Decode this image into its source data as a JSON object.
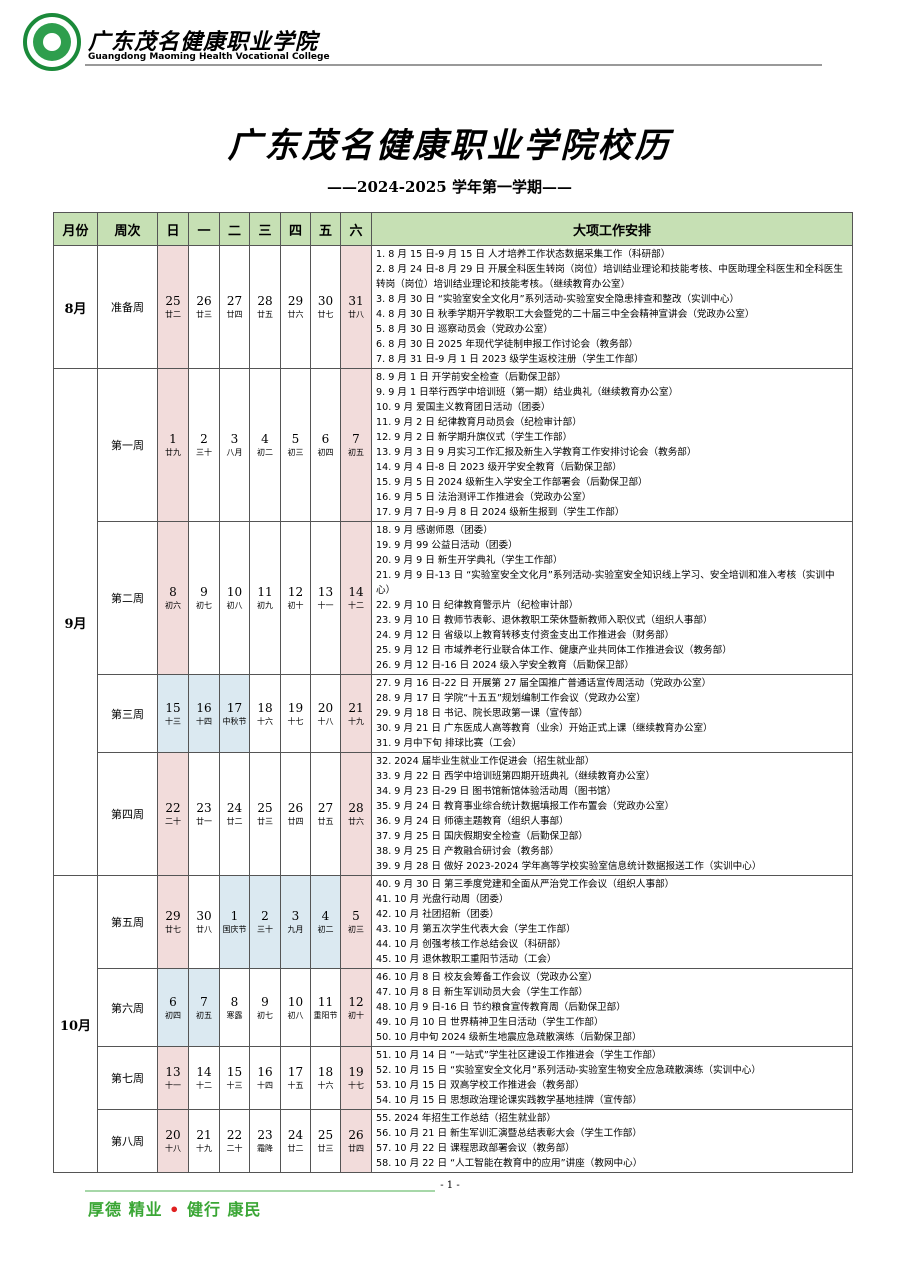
{
  "header": {
    "school_cn": "广东茂名健康职业学院",
    "school_en": "Guangdong Maoming Health Vocational College"
  },
  "title": "广东茂名健康职业学院校历",
  "subtitle": "——2024-2025 学年第一学期——",
  "table": {
    "headers": [
      "月份",
      "周次",
      "日",
      "一",
      "二",
      "三",
      "四",
      "五",
      "六",
      "大项工作安排"
    ],
    "months": [
      {
        "label": "8月",
        "weeks": [
          {
            "name": "准备周",
            "days": [
              {
                "d": 25,
                "lunar": "廿二"
              },
              {
                "d": 26,
                "lunar": "廿三"
              },
              {
                "d": 27,
                "lunar": "廿四"
              },
              {
                "d": 28,
                "lunar": "廿五"
              },
              {
                "d": 29,
                "lunar": "廿六"
              },
              {
                "d": 30,
                "lunar": "廿七"
              },
              {
                "d": 31,
                "lunar": "廿八"
              }
            ],
            "items": [
              "1. 8 月 15 日-9 月 15 日 人才培养工作状态数据采集工作（科研部）",
              "2. 8 月 24 日-8 月 29 日 开展全科医生转岗（岗位）培训结业理论和技能考核、中医助理全科医生和全科医生转岗（岗位）培训结业理论和技能考核。（继续教育办公室）",
              "3. 8 月 30 日 “实验室安全文化月”系列活动-实验室安全隐患排查和整改（实训中心）",
              "4. 8 月 30 日 秋季学期开学教职工大会暨党的二十届三中全会精神宣讲会（党政办公室）",
              "5. 8 月 30 日 巡察动员会（党政办公室）",
              "6. 8 月 30 日 2025 年现代学徒制申报工作讨论会（教务部）",
              "7. 8 月 31 日-9 月 1 日 2023 级学生返校注册（学生工作部）"
            ]
          }
        ]
      },
      {
        "label": "9月",
        "weeks": [
          {
            "name": "第一周",
            "days": [
              {
                "d": 1,
                "lunar": "廿九"
              },
              {
                "d": 2,
                "lunar": "三十"
              },
              {
                "d": 3,
                "lunar": "八月"
              },
              {
                "d": 4,
                "lunar": "初二"
              },
              {
                "d": 5,
                "lunar": "初三"
              },
              {
                "d": 6,
                "lunar": "初四"
              },
              {
                "d": 7,
                "lunar": "初五"
              }
            ],
            "items": [
              "8. 9 月 1 日 开学前安全检查（后勤保卫部）",
              "9. 9 月 1 日举行西学中培训班（第一期）结业典礼（继续教育办公室）",
              "10. 9 月 爱国主义教育团日活动（团委）",
              "11. 9 月 2 日 纪律教育月动员会（纪检审计部）",
              "12. 9 月 2 日 新学期升旗仪式（学生工作部）",
              "13. 9 月 3 日 9 月实习工作汇报及新生入学教育工作安排讨论会（教务部）",
              "14. 9 月 4 日-8 日 2023 级开学安全教育（后勤保卫部）",
              "15. 9 月 5 日 2024 级新生入学安全工作部署会（后勤保卫部）",
              "16. 9 月 5 日 法治测评工作推进会（党政办公室）",
              "17. 9 月 7 日-9 月 8 日 2024 级新生报到（学生工作部）"
            ]
          },
          {
            "name": "第二周",
            "days": [
              {
                "d": 8,
                "lunar": "初六"
              },
              {
                "d": 9,
                "lunar": "初七"
              },
              {
                "d": 10,
                "lunar": "初八"
              },
              {
                "d": 11,
                "lunar": "初九"
              },
              {
                "d": 12,
                "lunar": "初十"
              },
              {
                "d": 13,
                "lunar": "十一"
              },
              {
                "d": 14,
                "lunar": "十二"
              }
            ],
            "items": [
              "18. 9 月 感谢师恩（团委）",
              "19. 9 月 99 公益日活动（团委）",
              "20. 9 月 9 日 新生开学典礼（学生工作部）",
              "21. 9 月 9 日-13 日 “实验室安全文化月”系列活动-实验室安全知识线上学习、安全培训和准入考核（实训中心）",
              "22. 9 月 10 日 纪律教育警示片（纪检审计部）",
              "23. 9 月 10 日 教师节表彰、退休教职工荣休暨新教师入职仪式（组织人事部）",
              "24. 9 月 12 日 省级以上教育转移支付资金支出工作推进会（财务部）",
              "25. 9 月 12 日 市域养老行业联合体工作、健康产业共同体工作推进会议（教务部）",
              "26. 9 月 12 日-16 日 2024 级入学安全教育（后勤保卫部）"
            ]
          },
          {
            "name": "第三周",
            "days": [
              {
                "d": 15,
                "lunar": "十三",
                "holiday": true
              },
              {
                "d": 16,
                "lunar": "十四",
                "holiday": true
              },
              {
                "d": 17,
                "lunar": "中秋节",
                "holiday": true
              },
              {
                "d": 18,
                "lunar": "十六"
              },
              {
                "d": 19,
                "lunar": "十七"
              },
              {
                "d": 20,
                "lunar": "十八"
              },
              {
                "d": 21,
                "lunar": "十九"
              }
            ],
            "items": [
              "27. 9 月 16 日-22 日 开展第 27 届全国推广普通话宣传周活动（党政办公室）",
              "28. 9 月 17 日 学院“十五五”规划编制工作会议（党政办公室）",
              "29. 9 月 18 日 书记、院长思政第一课（宣传部）",
              "30. 9 月 21 日 广东医成人高等教育（业余）开始正式上课（继续教育办公室）",
              "31. 9 月中下旬 排球比赛（工会）"
            ]
          },
          {
            "name": "第四周",
            "days": [
              {
                "d": 22,
                "lunar": "二十"
              },
              {
                "d": 23,
                "lunar": "廿一"
              },
              {
                "d": 24,
                "lunar": "廿二"
              },
              {
                "d": 25,
                "lunar": "廿三"
              },
              {
                "d": 26,
                "lunar": "廿四"
              },
              {
                "d": 27,
                "lunar": "廿五"
              },
              {
                "d": 28,
                "lunar": "廿六"
              }
            ],
            "items": [
              "32. 2024 届毕业生就业工作促进会（招生就业部）",
              "33. 9 月 22 日 西学中培训班第四期开班典礼（继续教育办公室）",
              "34. 9 月 23 日-29 日 图书馆新馆体验活动周（图书馆）",
              "35. 9 月 24 日 教育事业综合统计数据填报工作布置会（党政办公室）",
              "36. 9 月 24 日 师德主题教育（组织人事部）",
              "37. 9 月 25 日 国庆假期安全检查（后勤保卫部）",
              "38. 9 月 25 日 产教融合研讨会（教务部）",
              "39. 9 月 28 日 做好 2023-2024 学年高等学校实验室信息统计数据报送工作（实训中心）"
            ]
          }
        ]
      },
      {
        "label": "10月",
        "weeks": [
          {
            "name": "第五周",
            "days": [
              {
                "d": 29,
                "lunar": "廿七"
              },
              {
                "d": 30,
                "lunar": "廿八"
              },
              {
                "d": 1,
                "lunar": "国庆节",
                "holiday": true
              },
              {
                "d": 2,
                "lunar": "三十",
                "holiday": true
              },
              {
                "d": 3,
                "lunar": "九月",
                "holiday": true
              },
              {
                "d": 4,
                "lunar": "初二",
                "holiday": true
              },
              {
                "d": 5,
                "lunar": "初三"
              }
            ],
            "items": [
              "40. 9 月 30 日 第三季度党建和全面从严治党工作会议（组织人事部）",
              "41. 10 月 光盘行动周（团委）",
              "42. 10 月 社团招新（团委）",
              "43. 10 月 第五次学生代表大会（学生工作部）",
              "44. 10 月 创强考核工作总结会议（科研部）",
              "45. 10 月 退休教职工重阳节活动（工会）"
            ]
          },
          {
            "name": "第六周",
            "days": [
              {
                "d": 6,
                "lunar": "初四",
                "holiday": true
              },
              {
                "d": 7,
                "lunar": "初五",
                "holiday": true
              },
              {
                "d": 8,
                "lunar": "寒露"
              },
              {
                "d": 9,
                "lunar": "初七"
              },
              {
                "d": 10,
                "lunar": "初八"
              },
              {
                "d": 11,
                "lunar": "重阳节"
              },
              {
                "d": 12,
                "lunar": "初十"
              }
            ],
            "items": [
              "46. 10 月 8 日 校友会筹备工作会议（党政办公室）",
              "47. 10 月 8 日 新生军训动员大会（学生工作部）",
              "48. 10 月 9 日-16 日 节约粮食宣传教育周（后勤保卫部）",
              "49. 10 月 10 日 世界精神卫生日活动（学生工作部）",
              "50. 10 月中旬 2024 级新生地震应急疏散演练（后勤保卫部）"
            ]
          },
          {
            "name": "第七周",
            "days": [
              {
                "d": 13,
                "lunar": "十一"
              },
              {
                "d": 14,
                "lunar": "十二"
              },
              {
                "d": 15,
                "lunar": "十三"
              },
              {
                "d": 16,
                "lunar": "十四"
              },
              {
                "d": 17,
                "lunar": "十五"
              },
              {
                "d": 18,
                "lunar": "十六"
              },
              {
                "d": 19,
                "lunar": "十七"
              }
            ],
            "items": [
              "51. 10 月 14 日 “一站式”学生社区建设工作推进会（学生工作部）",
              "52. 10 月 15 日 “实验室安全文化月”系列活动-实验室生物安全应急疏散演练（实训中心）",
              "53. 10 月 15 日 双高学校工作推进会（教务部）",
              "54. 10 月 15 日 思想政治理论课实践教学基地挂牌（宣传部）"
            ]
          },
          {
            "name": "第八周",
            "days": [
              {
                "d": 20,
                "lunar": "十八"
              },
              {
                "d": 21,
                "lunar": "十九"
              },
              {
                "d": 22,
                "lunar": "二十"
              },
              {
                "d": 23,
                "lunar": "霜降"
              },
              {
                "d": 24,
                "lunar": "廿二"
              },
              {
                "d": 25,
                "lunar": "廿三"
              },
              {
                "d": 26,
                "lunar": "廿四"
              }
            ],
            "items": [
              "55. 2024 年招生工作总结（招生就业部）",
              "56. 10 月 21 日 新生军训汇演暨总结表彰大会（学生工作部）",
              "57. 10 月 22 日 课程思政部署会议（教务部）",
              "58. 10 月 22 日 “人工智能在教育中的应用”讲座（教网中心）"
            ]
          }
        ]
      }
    ]
  },
  "footer": {
    "page": "- 1 -",
    "motto": [
      "厚德 精业",
      "•",
      "健行 康民"
    ]
  }
}
